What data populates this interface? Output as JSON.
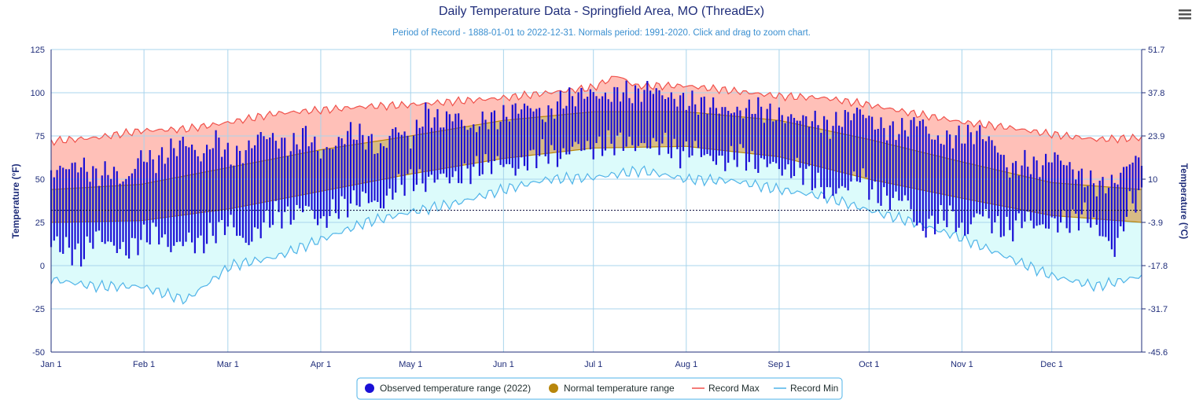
{
  "menu": {
    "icon": "hamburger-menu-icon"
  },
  "chart_data": {
    "type": "bar",
    "title": "Daily Temperature Data - Springfield Area, MO (ThreadEx)",
    "subtitle": "Period of Record - 1888-01-01 to 2022-12-31. Normals period: 1991-2020. Click and drag to zoom chart.",
    "ylabel": "Temperature (°F)",
    "y2label": "Temperature (°C)",
    "ylim": [
      -50,
      125
    ],
    "y_ticks": [
      "125",
      "100",
      "75",
      "50",
      "25",
      "0",
      "-25",
      "-50"
    ],
    "y2_ticks": [
      "51.7",
      "37.8",
      "23.9",
      "10",
      "-3.9",
      "-17.8",
      "-31.7",
      "-45.6"
    ],
    "x_ticks": [
      "Jan 1",
      "Feb 1",
      "Mar 1",
      "Apr 1",
      "May 1",
      "Jun 1",
      "Jul 1",
      "Aug 1",
      "Sep 1",
      "Oct 1",
      "Nov 1",
      "Dec 1"
    ],
    "freezing_line": 32,
    "grid": true,
    "legend_placement": "bottom-center",
    "legend": [
      {
        "label": "Observed temperature range (2022)",
        "color": "#1a10d6",
        "marker": "circle"
      },
      {
        "label": "Normal temperature range",
        "color": "#b8860b",
        "marker": "circle"
      },
      {
        "label": "Record Max",
        "color": "#f0504a",
        "marker": "line"
      },
      {
        "label": "Record Min",
        "color": "#4fb3e8",
        "marker": "line"
      }
    ],
    "colors": {
      "observed": "#1a10d6",
      "normal_fill": "#d7bb85",
      "normal_edge": "#b8860b",
      "record_max_line": "#f0504a",
      "record_max_fill": "#ffc0b8",
      "record_min_line": "#4fb3e8",
      "record_min_fill": "#dcfbfb",
      "grid": "#a8d4ec"
    },
    "series": [
      {
        "name": "Normal temperature range",
        "kind": "band",
        "x": [
          1,
          31,
          61,
          91,
          121,
          152,
          182,
          213,
          244,
          274,
          305,
          335,
          365
        ],
        "high": [
          44,
          47,
          57,
          67,
          75,
          84,
          89,
          89,
          84,
          73,
          60,
          48,
          44
        ],
        "low": [
          25,
          26,
          33,
          43,
          53,
          62,
          68,
          69,
          63,
          50,
          39,
          29,
          25
        ]
      },
      {
        "name": "Record Max",
        "kind": "line",
        "x": [
          1,
          16,
          31,
          46,
          61,
          76,
          91,
          106,
          121,
          136,
          152,
          167,
          182,
          190,
          196,
          213,
          229,
          244,
          259,
          274,
          289,
          305,
          320,
          335,
          350,
          365
        ],
        "values": [
          72,
          74,
          78,
          79,
          83,
          88,
          90,
          92,
          93,
          95,
          97,
          100,
          103,
          110,
          104,
          104,
          101,
          98,
          97,
          93,
          88,
          83,
          80,
          76,
          73,
          74
        ]
      },
      {
        "name": "Record Min",
        "kind": "line",
        "x": [
          1,
          16,
          31,
          46,
          61,
          76,
          91,
          106,
          121,
          136,
          152,
          167,
          182,
          198,
          213,
          229,
          244,
          259,
          274,
          289,
          305,
          320,
          335,
          350,
          365
        ],
        "values": [
          -8,
          -12,
          -12,
          -20,
          0,
          5,
          15,
          25,
          31,
          36,
          44,
          50,
          51,
          55,
          50,
          49,
          44,
          40,
          32,
          25,
          16,
          5,
          -6,
          -12,
          -6
        ]
      },
      {
        "name": "Observed temperature range (2022)",
        "kind": "bars",
        "x": [
          1,
          6,
          11,
          16,
          21,
          26,
          31,
          36,
          41,
          46,
          51,
          56,
          61,
          66,
          71,
          76,
          81,
          86,
          91,
          96,
          101,
          106,
          111,
          116,
          121,
          126,
          131,
          136,
          141,
          146,
          151,
          156,
          161,
          166,
          171,
          176,
          181,
          186,
          191,
          196,
          201,
          206,
          211,
          216,
          221,
          226,
          231,
          236,
          241,
          246,
          251,
          256,
          261,
          266,
          271,
          276,
          281,
          286,
          291,
          296,
          301,
          306,
          311,
          316,
          321,
          326,
          331,
          336,
          341,
          346,
          351,
          356,
          361,
          365
        ],
        "high": [
          54,
          57,
          58,
          52,
          55,
          48,
          64,
          60,
          67,
          72,
          62,
          74,
          62,
          66,
          76,
          73,
          68,
          77,
          65,
          70,
          78,
          74,
          66,
          80,
          72,
          89,
          83,
          88,
          78,
          85,
          85,
          91,
          92,
          86,
          95,
          98,
          100,
          97,
          101,
          99,
          103,
          98,
          96,
          94,
          93,
          90,
          89,
          92,
          88,
          86,
          85,
          84,
          80,
          86,
          90,
          82,
          78,
          79,
          85,
          72,
          74,
          75,
          77,
          70,
          55,
          60,
          57,
          64,
          57,
          50,
          46,
          48,
          60,
          62
        ],
        "low": [
          14,
          10,
          5,
          18,
          12,
          8,
          15,
          20,
          10,
          15,
          12,
          20,
          25,
          12,
          22,
          30,
          28,
          35,
          24,
          33,
          36,
          40,
          34,
          45,
          50,
          48,
          52,
          50,
          55,
          58,
          60,
          55,
          62,
          66,
          62,
          70,
          67,
          70,
          72,
          69,
          70,
          70,
          64,
          68,
          62,
          60,
          65,
          58,
          60,
          54,
          56,
          48,
          42,
          45,
          53,
          41,
          38,
          40,
          20,
          25,
          30,
          18,
          32,
          23,
          20,
          28,
          22,
          25,
          25,
          30,
          20,
          8,
          36,
          40
        ]
      }
    ]
  }
}
